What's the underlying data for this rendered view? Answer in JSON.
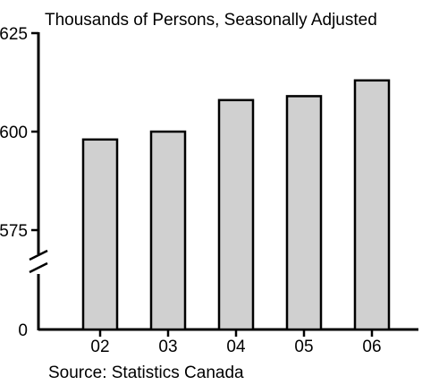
{
  "chart_data": {
    "type": "bar",
    "title": "Thousands of Persons, Seasonally Adjusted",
    "categories": [
      "02",
      "03",
      "04",
      "05",
      "06"
    ],
    "values": [
      598,
      600,
      608,
      609,
      613
    ],
    "y_ticks": [
      "625",
      "600",
      "575",
      "0"
    ],
    "ylim": [
      575,
      625
    ],
    "y_axis_break": true,
    "xlabel": "",
    "ylabel": "",
    "grid": false,
    "legend": "none",
    "source": "Source: Statistics Canada",
    "bar_color": "#d0d0d0",
    "outline_color": "#000000"
  }
}
